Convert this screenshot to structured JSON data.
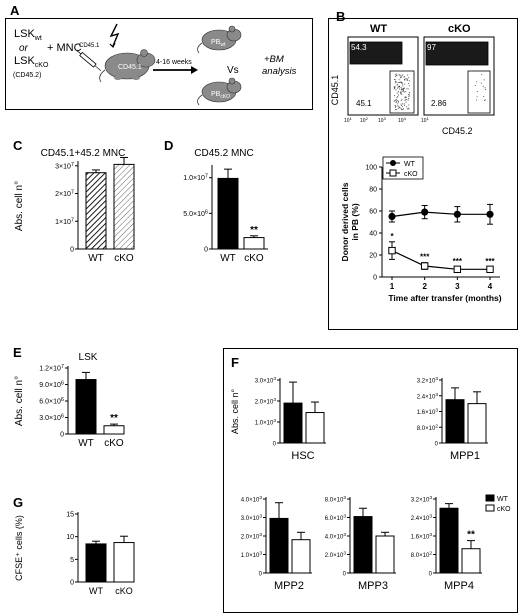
{
  "panels": {
    "A": {
      "letter": "A",
      "donor_top": "LSK",
      "donor_top_sub": "wt",
      "or": "or",
      "donor_bottom": "LSK",
      "donor_bottom_sub": "cKO",
      "donor_marker": "(CD45.2)",
      "plus_mnc": "+ MNC",
      "mnc_marker": "CD45.1",
      "recipient": "CD45.1",
      "duration": "4-16 weeks",
      "pb_wt": "PB",
      "pb_wt_sub": "wt",
      "vs": "Vs",
      "pb_cko": "PB",
      "pb_cko_sub": "cKO",
      "analysis_line1": "+BM",
      "analysis_line2": "analysis"
    },
    "B": {
      "letter": "B",
      "wt_title": "WT",
      "cko_title": "cKO",
      "wt_top_pct": "54.3",
      "wt_bottom_pct": "45.1",
      "cko_top_pct": "97",
      "cko_bottom_pct": "2.86",
      "y_axis": "CD45.1",
      "x_axis": "CD45.2",
      "ticks": [
        "10",
        "10",
        "10",
        "10",
        "10"
      ],
      "tick_exp": [
        "1",
        "2",
        "3",
        "4",
        "1"
      ]
    },
    "C": {
      "letter": "C"
    },
    "D": {
      "letter": "D"
    },
    "E": {
      "letter": "E"
    },
    "F": {
      "letter": "F"
    },
    "G": {
      "letter": "G"
    }
  },
  "chart_data": [
    {
      "id": "B-line",
      "type": "line",
      "x": [
        1,
        2,
        3,
        4
      ],
      "xticklabels": [
        "1",
        "2",
        "3",
        "4"
      ],
      "xlabel": "Time after transfer (months)",
      "ylabel": "Donor derived cells in PB (%)",
      "ylabel_lines": [
        "Donor derived cells",
        "in PB (%)"
      ],
      "ylim": [
        0,
        100
      ],
      "yticks": [
        0,
        20,
        40,
        60,
        80,
        100
      ],
      "series": [
        {
          "name": "WT",
          "values": [
            55,
            59,
            57,
            57
          ],
          "err": [
            5,
            6,
            7,
            9
          ],
          "color": "#000000"
        },
        {
          "name": "cKO",
          "values": [
            24,
            10,
            7,
            7
          ],
          "err": [
            8,
            3,
            2,
            2
          ],
          "color": "#ffffff"
        }
      ],
      "annotations": [
        "*",
        "***",
        "***",
        "***"
      ],
      "legend": "top-left"
    },
    {
      "id": "C",
      "type": "bar",
      "title": "CD45.1+45.2 MNC",
      "categories": [
        "WT",
        "cKO"
      ],
      "values": [
        27500000.0,
        30500000.0
      ],
      "err": [
        1000000.0,
        2500000.0
      ],
      "ylabel": "Abs. cell n°",
      "ylim": [
        0,
        31000000.0
      ],
      "yticks": [
        {
          "v": 0,
          "m": "0"
        },
        {
          "v": 10000000.0,
          "m": "1×10",
          "e": "7"
        },
        {
          "v": 20000000.0,
          "m": "2×10",
          "e": "7"
        },
        {
          "v": 30000000.0,
          "m": "3×10",
          "e": "7"
        }
      ],
      "fills": [
        "hatch-dark",
        "hatch-light"
      ],
      "stars": ""
    },
    {
      "id": "D",
      "type": "bar",
      "title": "CD45.2 MNC",
      "categories": [
        "WT",
        "cKO"
      ],
      "values": [
        9900000.0,
        1600000.0
      ],
      "err": [
        1300000.0,
        250000.0
      ],
      "ylim": [
        0,
        11500000.0
      ],
      "yticks": [
        {
          "v": 0,
          "m": "0"
        },
        {
          "v": 5000000.0,
          "m": "5.0×10",
          "e": "6"
        },
        {
          "v": 10000000.0,
          "m": "1.0×10",
          "e": "7"
        }
      ],
      "fills": [
        "black",
        "white"
      ],
      "stars": "**"
    },
    {
      "id": "E",
      "type": "bar",
      "title": "LSK",
      "categories": [
        "WT",
        "cKO"
      ],
      "values": [
        9900000.0,
        1500000.0
      ],
      "err": [
        1300000.0,
        300000.0
      ],
      "ylabel": "Abs. cell n°",
      "ylim": [
        0,
        12000000.0
      ],
      "yticks": [
        {
          "v": 0,
          "m": "0"
        },
        {
          "v": 3000000.0,
          "m": "3.0×10",
          "e": "6"
        },
        {
          "v": 6000000.0,
          "m": "6.0×10",
          "e": "6"
        },
        {
          "v": 9000000.0,
          "m": "9.0×10",
          "e": "6"
        },
        {
          "v": 12000000.0,
          "m": "1.2×10",
          "e": "7"
        }
      ],
      "fills": [
        "black",
        "white"
      ],
      "stars": "**"
    },
    {
      "id": "F-HSC",
      "type": "bar",
      "title": "HSC",
      "categories": [
        "WT",
        "cKO"
      ],
      "values": [
        1900,
        1450
      ],
      "err": [
        1000,
        500
      ],
      "ylabel": "Abs. cell n°",
      "ylim": [
        0,
        3000
      ],
      "yticks": [
        {
          "v": 0,
          "m": "0"
        },
        {
          "v": 1000,
          "m": "1.0×10",
          "e": "3"
        },
        {
          "v": 2000,
          "m": "2.0×10",
          "e": "3"
        },
        {
          "v": 3000,
          "m": "3.0×10",
          "e": "3"
        }
      ],
      "fills": [
        "black",
        "white"
      ],
      "stars": ""
    },
    {
      "id": "F-MPP1",
      "type": "bar",
      "title": "MPP1",
      "categories": [
        "WT",
        "cKO"
      ],
      "values": [
        2200,
        2000
      ],
      "err": [
        600,
        600
      ],
      "ylim": [
        0,
        3200
      ],
      "yticks": [
        {
          "v": 0,
          "m": "0"
        },
        {
          "v": 800,
          "m": "8.0×10",
          "e": "2"
        },
        {
          "v": 1600,
          "m": "1.6×10",
          "e": "3"
        },
        {
          "v": 2400,
          "m": "2.4×10",
          "e": "3"
        },
        {
          "v": 3200,
          "m": "3.2×10",
          "e": "3"
        }
      ],
      "fills": [
        "black",
        "white"
      ],
      "stars": ""
    },
    {
      "id": "F-MPP2",
      "type": "bar",
      "title": "MPP2",
      "categories": [
        "WT",
        "cKO"
      ],
      "values": [
        2950,
        1800
      ],
      "err": [
        850,
        400
      ],
      "ylim": [
        0,
        4000
      ],
      "yticks": [
        {
          "v": 0,
          "m": "0"
        },
        {
          "v": 1000,
          "m": "1.0×10",
          "e": "3"
        },
        {
          "v": 2000,
          "m": "2.0×10",
          "e": "3"
        },
        {
          "v": 3000,
          "m": "3.0×10",
          "e": "3"
        },
        {
          "v": 4000,
          "m": "4.0×10",
          "e": "3"
        }
      ],
      "fills": [
        "black",
        "white"
      ],
      "stars": ""
    },
    {
      "id": "F-MPP3",
      "type": "bar",
      "title": "MPP3",
      "categories": [
        "WT",
        "cKO"
      ],
      "values": [
        6100,
        4000
      ],
      "err": [
        900,
        400
      ],
      "ylim": [
        0,
        8000
      ],
      "yticks": [
        {
          "v": 0,
          "m": "0"
        },
        {
          "v": 2000,
          "m": "2.0×10",
          "e": "3"
        },
        {
          "v": 4000,
          "m": "4.0×10",
          "e": "3"
        },
        {
          "v": 6000,
          "m": "6.0×10",
          "e": "3"
        },
        {
          "v": 8000,
          "m": "8.0×10",
          "e": "3"
        }
      ],
      "fills": [
        "black",
        "white"
      ],
      "stars": ""
    },
    {
      "id": "F-MPP4",
      "type": "bar",
      "title": "MPP4",
      "categories": [
        "WT",
        "cKO"
      ],
      "values": [
        2800,
        1050
      ],
      "err": [
        200,
        350
      ],
      "ylim": [
        0,
        3200
      ],
      "yticks": [
        {
          "v": 0,
          "m": "0"
        },
        {
          "v": 800,
          "m": "8.0×10",
          "e": "2"
        },
        {
          "v": 1600,
          "m": "1.6×10",
          "e": "3"
        },
        {
          "v": 2400,
          "m": "2.4×10",
          "e": "3"
        },
        {
          "v": 3200,
          "m": "3.2×10",
          "e": "3"
        }
      ],
      "fills": [
        "black",
        "white"
      ],
      "stars": "**",
      "legend": "top-right",
      "legend_labels": [
        "WT",
        "cKO"
      ]
    },
    {
      "id": "G",
      "type": "bar",
      "categories": [
        "WT",
        "cKO"
      ],
      "values": [
        8.4,
        8.7
      ],
      "err": [
        0.6,
        1.4
      ],
      "ylabel": "CFSE⁺ cells (%)",
      "ylim": [
        0,
        15
      ],
      "yticks": [
        {
          "v": 0,
          "m": "0"
        },
        {
          "v": 5,
          "m": "5"
        },
        {
          "v": 10,
          "m": "10"
        },
        {
          "v": 15,
          "m": "15"
        }
      ],
      "fills": [
        "black",
        "white"
      ],
      "stars": ""
    }
  ]
}
